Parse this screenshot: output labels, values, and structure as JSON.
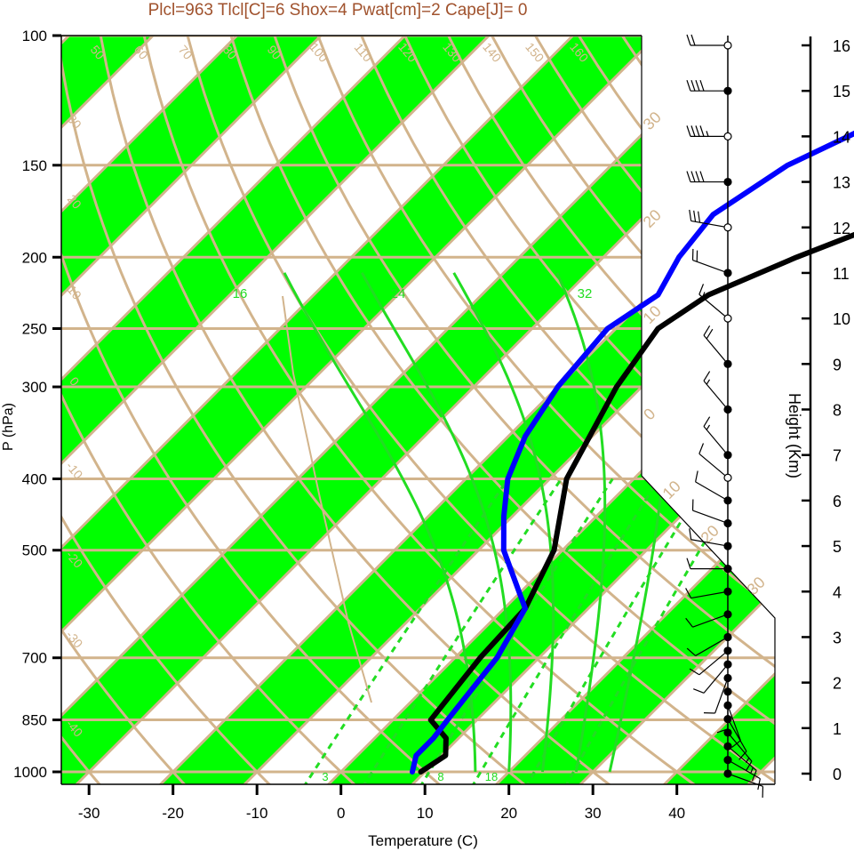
{
  "header": {
    "title": "Plcl=963 Tlcl[C]=6 Shox=4 Pwat[cm]=2 Cape[J]= 0"
  },
  "colors": {
    "title": "#a0522d",
    "band_green": "#00ff00",
    "isopleth_tan": "#d2b48c",
    "moist_green": "#22dd22",
    "temperature": "#000000",
    "dewpoint": "#0000ff"
  },
  "chart_data": {
    "type": "line",
    "title": "Plcl=963 Tlcl[C]=6 Shox=4 Pwat[cm]=2 Cape[J]= 0",
    "xlabel": "Temperature (C)",
    "ylabel": "P (hPa)",
    "y2label": "Height (Km)",
    "xlim": [
      -34,
      50
    ],
    "ylim": [
      1050,
      100
    ],
    "x_ticks": [
      -30,
      -20,
      -10,
      0,
      10,
      20,
      30,
      40
    ],
    "p_ticks": [
      100,
      150,
      200,
      250,
      300,
      400,
      500,
      700,
      850,
      1000
    ],
    "height_ticks": [
      0,
      1,
      2,
      3,
      4,
      5,
      6,
      7,
      8,
      9,
      10,
      11,
      12,
      13,
      14,
      15,
      16
    ],
    "isotherm_labels": [
      "50",
      "60",
      "70",
      "80",
      "90",
      "100",
      "110",
      "120",
      "130",
      "140",
      "150",
      "160",
      "30",
      "20",
      "10",
      "0",
      "-10",
      "-20",
      "-30",
      "-40"
    ],
    "theta_labels": [
      "40",
      "30",
      "20",
      "10",
      "0",
      "-10",
      "-20",
      "-30",
      "10",
      "20",
      "30",
      "30",
      "20",
      "10",
      "0"
    ],
    "moist_labels": [
      "16",
      "24",
      "32"
    ],
    "mixing_labels": [
      "3",
      "8",
      "18"
    ],
    "series": [
      {
        "name": "Temperature",
        "points": [
          [
            9.5,
            1000
          ],
          [
            10.5,
            950
          ],
          [
            8.5,
            900
          ],
          [
            4.5,
            850
          ],
          [
            3,
            700
          ],
          [
            2.5,
            600
          ],
          [
            -1,
            500
          ],
          [
            -8,
            400
          ],
          [
            -13,
            300
          ],
          [
            -15,
            250
          ],
          [
            -13,
            225
          ],
          [
            -7,
            200
          ],
          [
            1,
            175
          ],
          [
            5,
            150
          ],
          [
            9,
            130
          ],
          [
            13,
            113
          ]
        ]
      },
      {
        "name": "Dewpoint",
        "points": [
          [
            8.5,
            1000
          ],
          [
            7,
            950
          ],
          [
            7,
            900
          ],
          [
            6.5,
            850
          ],
          [
            5,
            700
          ],
          [
            2.5,
            600
          ],
          [
            -7,
            500
          ],
          [
            -11,
            450
          ],
          [
            -15,
            400
          ],
          [
            -18,
            350
          ],
          [
            -20,
            300
          ],
          [
            -21,
            250
          ],
          [
            -19,
            225
          ],
          [
            -21,
            200
          ],
          [
            -22,
            175
          ],
          [
            -19,
            150
          ],
          [
            -13,
            130
          ],
          [
            -8,
            113
          ]
        ]
      }
    ],
    "wind_barbs": {
      "heights_km": [
        0,
        0.3,
        0.6,
        0.9,
        1.2,
        1.5,
        1.8,
        2.1,
        2.4,
        2.7,
        3.0,
        3.5,
        4.0,
        4.5,
        5.0,
        5.5,
        6.0,
        6.5,
        7.0,
        8.0,
        9.0,
        10.0,
        11.0,
        12.0,
        13.0,
        14.0,
        15.0,
        16.0
      ],
      "filled": [
        true,
        true,
        true,
        true,
        true,
        true,
        true,
        true,
        true,
        true,
        true,
        true,
        true,
        true,
        true,
        true,
        true,
        false,
        true,
        true,
        true,
        false,
        true,
        false,
        true,
        false,
        true,
        false
      ],
      "speed_kt": [
        10,
        10,
        15,
        15,
        10,
        10,
        10,
        10,
        10,
        10,
        10,
        10,
        10,
        10,
        10,
        10,
        10,
        10,
        15,
        15,
        20,
        15,
        20,
        30,
        40,
        45,
        40,
        20
      ],
      "direction_deg": [
        110,
        120,
        130,
        140,
        150,
        160,
        180,
        200,
        220,
        230,
        240,
        250,
        260,
        270,
        280,
        290,
        300,
        310,
        320,
        320,
        320,
        310,
        290,
        280,
        270,
        270,
        270,
        270
      ]
    }
  }
}
